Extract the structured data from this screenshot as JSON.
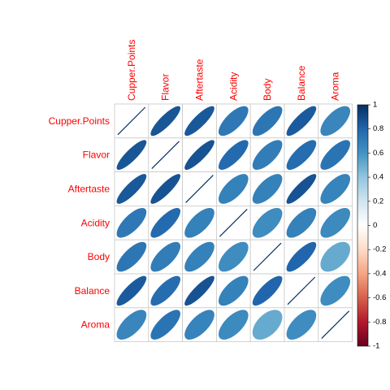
{
  "chart_data": {
    "type": "heatmap",
    "variables": [
      "Cupper.Points",
      "Flavor",
      "Aftertaste",
      "Acidity",
      "Body",
      "Balance",
      "Aroma"
    ],
    "matrix": [
      [
        1.0,
        0.86,
        0.85,
        0.72,
        0.73,
        0.84,
        0.66
      ],
      [
        0.86,
        1.0,
        0.87,
        0.78,
        0.7,
        0.77,
        0.74
      ],
      [
        0.85,
        0.87,
        1.0,
        0.68,
        0.68,
        0.87,
        0.67
      ],
      [
        0.72,
        0.78,
        0.68,
        1.0,
        0.63,
        0.68,
        0.64
      ],
      [
        0.73,
        0.7,
        0.68,
        0.63,
        1.0,
        0.8,
        0.51
      ],
      [
        0.84,
        0.77,
        0.87,
        0.68,
        0.8,
        1.0,
        0.63
      ],
      [
        0.66,
        0.74,
        0.67,
        0.64,
        0.51,
        0.63,
        1.0
      ]
    ],
    "color_scale": {
      "min": -1,
      "max": 1,
      "ticks": [
        "1",
        "0.8",
        "0.6",
        "0.4",
        "0.2",
        "0",
        "-0.2",
        "-0.4",
        "-0.6",
        "-0.8",
        "-1"
      ],
      "colors": [
        "#67001F",
        "#B2182B",
        "#D6604D",
        "#F4A582",
        "#FDDBC7",
        "#FFFFFF",
        "#D1E5F0",
        "#92C5DE",
        "#4393C3",
        "#2166AC",
        "#053061"
      ]
    },
    "label_color": "#FF0000",
    "grid_color": "#C8C8C8"
  }
}
